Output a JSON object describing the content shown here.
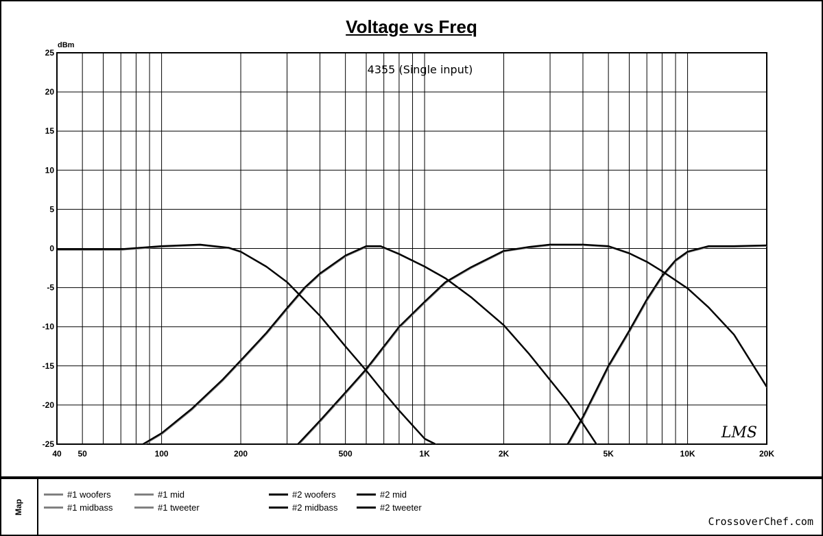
{
  "chart_data": {
    "type": "line",
    "title": "Voltage vs Freq",
    "subtitle": "4355 (Single input)",
    "ylabel": "dBm",
    "xscale": "log",
    "xlim": [
      40,
      20000
    ],
    "ylim": [
      -25,
      25
    ],
    "yticks": [
      25,
      20,
      15,
      10,
      5,
      0,
      -5,
      -10,
      -15,
      -20,
      -25
    ],
    "xtick_labels": [
      {
        "v": 40,
        "t": "40"
      },
      {
        "v": 50,
        "t": "50"
      },
      {
        "v": 100,
        "t": "100"
      },
      {
        "v": 200,
        "t": "200"
      },
      {
        "v": 500,
        "t": "500"
      },
      {
        "v": 1000,
        "t": "1K"
      },
      {
        "v": 2000,
        "t": "2K"
      },
      {
        "v": 5000,
        "t": "5K"
      },
      {
        "v": 10000,
        "t": "10K"
      },
      {
        "v": 20000,
        "t": "20K"
      }
    ],
    "grid": true,
    "series": [
      {
        "name": "#1 woofers",
        "color": "#808080",
        "points": [
          [
            40,
            -0.1
          ],
          [
            70,
            -0.1
          ],
          [
            100,
            0.3
          ],
          [
            140,
            0.5
          ],
          [
            180,
            0.1
          ],
          [
            200,
            -0.4
          ],
          [
            250,
            -2.3
          ],
          [
            300,
            -4.3
          ],
          [
            400,
            -8.6
          ],
          [
            500,
            -12.5
          ],
          [
            600,
            -15.6
          ],
          [
            700,
            -18.4
          ],
          [
            800,
            -20.7
          ],
          [
            1000,
            -24.3
          ],
          [
            1100,
            -25
          ]
        ]
      },
      {
        "name": "#1 midbass",
        "color": "#808080",
        "points": [
          [
            85,
            -25
          ],
          [
            100,
            -23.6
          ],
          [
            130,
            -20.5
          ],
          [
            170,
            -16.8
          ],
          [
            200,
            -14.3
          ],
          [
            250,
            -10.8
          ],
          [
            300,
            -7.6
          ],
          [
            350,
            -5
          ],
          [
            400,
            -3.2
          ],
          [
            500,
            -0.9
          ],
          [
            600,
            0.3
          ],
          [
            680,
            0.3
          ],
          [
            800,
            -0.7
          ],
          [
            1000,
            -2.3
          ],
          [
            1200,
            -3.8
          ],
          [
            1500,
            -6.2
          ],
          [
            2000,
            -9.8
          ],
          [
            2500,
            -13.5
          ],
          [
            3000,
            -16.8
          ],
          [
            3500,
            -19.6
          ],
          [
            4000,
            -22.4
          ],
          [
            4500,
            -25
          ]
        ]
      },
      {
        "name": "#1 mid",
        "color": "#808080",
        "points": [
          [
            330,
            -25
          ],
          [
            400,
            -22
          ],
          [
            500,
            -18.4
          ],
          [
            600,
            -15.4
          ],
          [
            700,
            -12.5
          ],
          [
            800,
            -10
          ],
          [
            1000,
            -6.8
          ],
          [
            1200,
            -4.3
          ],
          [
            1500,
            -2.4
          ],
          [
            2000,
            -0.3
          ],
          [
            2500,
            0.2
          ],
          [
            3000,
            0.5
          ],
          [
            4000,
            0.5
          ],
          [
            5000,
            0.3
          ],
          [
            6000,
            -0.6
          ],
          [
            7000,
            -1.7
          ],
          [
            8000,
            -2.9
          ],
          [
            10000,
            -5.1
          ],
          [
            12000,
            -7.5
          ],
          [
            15000,
            -11
          ],
          [
            20000,
            -17.7
          ]
        ]
      },
      {
        "name": "#1 tweeter",
        "color": "#808080",
        "points": [
          [
            3500,
            -25
          ],
          [
            4000,
            -21.5
          ],
          [
            5000,
            -15
          ],
          [
            6000,
            -10.5
          ],
          [
            7000,
            -6.5
          ],
          [
            8000,
            -3.5
          ],
          [
            9000,
            -1.5
          ],
          [
            10000,
            -0.4
          ],
          [
            12000,
            0.3
          ],
          [
            15000,
            0.3
          ],
          [
            20000,
            0.4
          ]
        ]
      },
      {
        "name": "#2 woofers",
        "color": "#000000",
        "points": [
          [
            40,
            -0.1
          ],
          [
            70,
            -0.1
          ],
          [
            100,
            0.3
          ],
          [
            140,
            0.5
          ],
          [
            180,
            0.1
          ],
          [
            200,
            -0.4
          ],
          [
            250,
            -2.3
          ],
          [
            300,
            -4.3
          ],
          [
            400,
            -8.6
          ],
          [
            500,
            -12.5
          ],
          [
            600,
            -15.6
          ],
          [
            700,
            -18.4
          ],
          [
            800,
            -20.7
          ],
          [
            1000,
            -24.3
          ],
          [
            1100,
            -25
          ]
        ]
      },
      {
        "name": "#2 midbass",
        "color": "#000000",
        "points": [
          [
            85,
            -25
          ],
          [
            100,
            -23.6
          ],
          [
            130,
            -20.5
          ],
          [
            170,
            -16.8
          ],
          [
            200,
            -14.3
          ],
          [
            250,
            -10.8
          ],
          [
            300,
            -7.6
          ],
          [
            350,
            -5
          ],
          [
            400,
            -3.2
          ],
          [
            500,
            -0.9
          ],
          [
            600,
            0.3
          ],
          [
            680,
            0.3
          ],
          [
            800,
            -0.7
          ],
          [
            1000,
            -2.3
          ],
          [
            1200,
            -3.8
          ],
          [
            1500,
            -6.2
          ],
          [
            2000,
            -9.8
          ],
          [
            2500,
            -13.5
          ],
          [
            3000,
            -16.8
          ],
          [
            3500,
            -19.6
          ],
          [
            4000,
            -22.4
          ],
          [
            4500,
            -25
          ]
        ]
      },
      {
        "name": "#2 mid",
        "color": "#000000",
        "points": [
          [
            330,
            -25
          ],
          [
            400,
            -22
          ],
          [
            500,
            -18.4
          ],
          [
            600,
            -15.4
          ],
          [
            700,
            -12.5
          ],
          [
            800,
            -10
          ],
          [
            1000,
            -6.8
          ],
          [
            1200,
            -4.3
          ],
          [
            1500,
            -2.4
          ],
          [
            2000,
            -0.3
          ],
          [
            2500,
            0.2
          ],
          [
            3000,
            0.5
          ],
          [
            4000,
            0.5
          ],
          [
            5000,
            0.3
          ],
          [
            6000,
            -0.6
          ],
          [
            7000,
            -1.7
          ],
          [
            8000,
            -2.9
          ],
          [
            10000,
            -5.1
          ],
          [
            12000,
            -7.5
          ],
          [
            15000,
            -11
          ],
          [
            20000,
            -17.7
          ]
        ]
      },
      {
        "name": "#2 tweeter",
        "color": "#000000",
        "points": [
          [
            3500,
            -25
          ],
          [
            4000,
            -21.5
          ],
          [
            5000,
            -15
          ],
          [
            6000,
            -10.5
          ],
          [
            7000,
            -6.5
          ],
          [
            8000,
            -3.5
          ],
          [
            9000,
            -1.5
          ],
          [
            10000,
            -0.4
          ],
          [
            12000,
            0.3
          ],
          [
            15000,
            0.3
          ],
          [
            20000,
            0.4
          ]
        ]
      }
    ],
    "watermark": "LMS"
  },
  "map": {
    "label": "Map",
    "legend": [
      "#1 woofers",
      "#1 midbass",
      "#1 mid",
      "#1 tweeter",
      "#2 woofers",
      "#2 midbass",
      "#2 mid",
      "#2 tweeter"
    ]
  },
  "credit": "CrossoverChef.com"
}
